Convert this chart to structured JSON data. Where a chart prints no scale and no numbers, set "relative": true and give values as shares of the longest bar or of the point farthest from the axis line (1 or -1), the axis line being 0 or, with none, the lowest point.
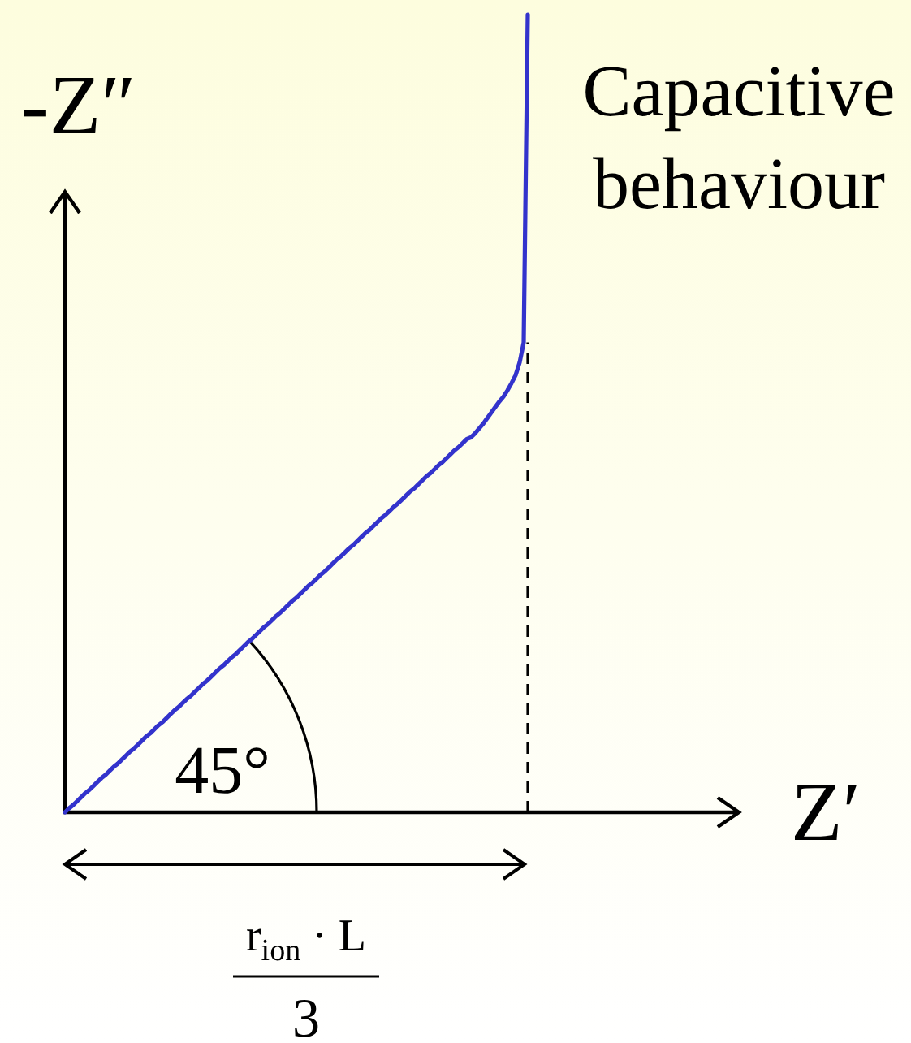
{
  "chart_data": {
    "type": "line",
    "relative": true,
    "xlabel": "Z′",
    "ylabel": "-Z″",
    "categories": [
      null,
      null,
      null,
      null,
      null,
      null,
      null,
      null,
      null,
      null,
      null,
      null,
      null,
      null,
      null,
      null,
      null,
      null,
      null,
      null,
      null,
      null,
      null,
      null,
      null,
      null,
      null,
      null,
      null,
      null,
      null,
      null,
      null,
      null,
      null,
      null,
      null,
      null,
      null,
      null,
      null,
      null,
      null,
      null,
      null,
      null,
      null,
      null,
      null,
      null,
      null,
      null,
      null,
      null,
      null,
      null,
      null,
      null,
      null,
      null,
      null,
      null,
      null,
      null,
      null,
      null,
      null,
      null,
      null,
      null,
      null,
      null,
      null,
      null,
      null,
      null,
      null,
      null,
      null,
      null,
      null,
      null,
      null,
      null,
      null,
      null,
      null,
      null,
      null,
      null,
      null,
      null,
      null,
      null,
      null,
      null,
      null,
      null,
      null,
      null,
      null,
      null,
      null,
      null,
      null,
      null,
      null,
      null,
      null,
      null,
      null,
      null,
      null,
      null,
      null
    ],
    "series": [
      {
        "color": "#3333cc",
        "values": [
          0,
          0.005,
          0.009,
          0.014,
          0.019,
          0.024,
          0.028,
          0.033,
          0.038,
          0.043,
          0.047,
          0.052,
          0.057,
          0.061,
          0.066,
          0.071,
          0.076,
          0.08,
          0.085,
          0.09,
          0.095,
          0.099,
          0.104,
          0.109,
          0.113,
          0.118,
          0.123,
          0.128,
          0.132,
          0.137,
          0.142,
          0.146,
          0.151,
          0.156,
          0.161,
          0.165,
          0.17,
          0.175,
          0.18,
          0.184,
          0.189,
          0.194,
          0.198,
          0.203,
          0.208,
          0.213,
          0.217,
          0.222,
          0.227,
          0.232,
          0.236,
          0.241,
          0.246,
          0.25,
          0.255,
          0.26,
          0.265,
          0.269,
          0.274,
          0.279,
          0.284,
          0.288,
          0.293,
          0.298,
          0.302,
          0.307,
          0.312,
          0.317,
          0.321,
          0.326,
          0.331,
          0.335,
          0.34,
          0.345,
          0.35,
          0.354,
          0.359,
          0.364,
          0.369,
          0.373,
          0.378,
          0.383,
          0.387,
          0.392,
          0.397,
          0.402,
          0.406,
          0.411,
          0.416,
          0.421,
          0.425,
          0.43,
          0.435,
          0.439,
          0.444,
          0.449,
          0.454,
          0.458,
          0.463,
          0.468,
          0.47,
          0.475,
          0.481,
          0.487,
          0.494,
          0.501,
          0.508,
          0.515,
          0.521,
          0.529,
          0.538,
          0.548,
          0.564,
          0.589,
          1
        ]
      }
    ],
    "annotations": [
      "Capacitive behaviour",
      "45°",
      "r$_{ion}$ · L",
      "3"
    ]
  }
}
